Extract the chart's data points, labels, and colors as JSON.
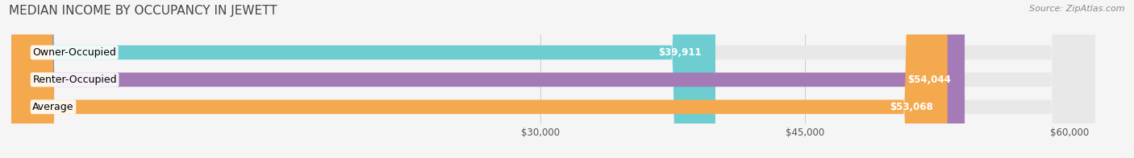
{
  "title": "MEDIAN INCOME BY OCCUPANCY IN JEWETT",
  "source_text": "Source: ZipAtlas.com",
  "categories": [
    "Owner-Occupied",
    "Renter-Occupied",
    "Average"
  ],
  "values": [
    39911,
    54044,
    53068
  ],
  "bar_colors": [
    "#6dcdd0",
    "#a57bb7",
    "#f5a94e"
  ],
  "bar_bg_color": "#e8e8e8",
  "value_labels": [
    "$39,911",
    "$54,044",
    "$53,068"
  ],
  "x_ticks": [
    30000,
    45000,
    60000
  ],
  "x_tick_labels": [
    "$30,000",
    "$45,000",
    "$60,000"
  ],
  "xlim": [
    0,
    63000
  ],
  "background_color": "#f5f5f5",
  "title_fontsize": 11,
  "source_fontsize": 8,
  "label_fontsize": 9,
  "value_fontsize": 8.5,
  "tick_fontsize": 8.5
}
